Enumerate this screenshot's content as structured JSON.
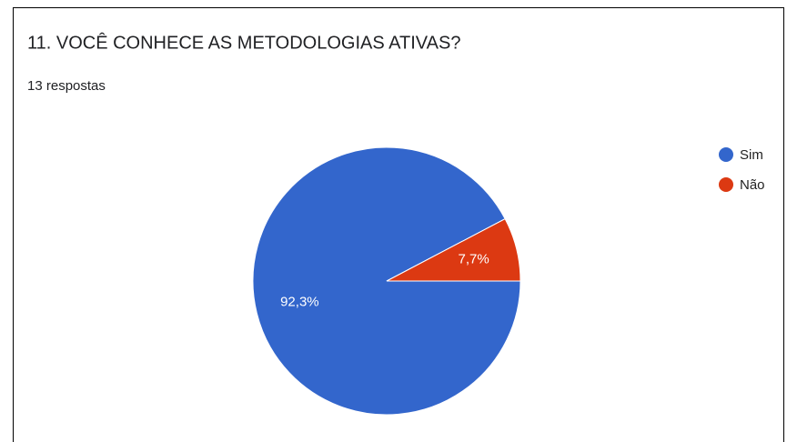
{
  "chart_data": {
    "type": "pie",
    "title": "11. VOCÊ CONHECE AS METODOLOGIAS ATIVAS?",
    "subtitle": "13 respostas",
    "categories": [
      "Sim",
      "Não"
    ],
    "values": [
      92.3,
      7.7
    ],
    "value_labels": [
      "92,3%",
      "7,7%"
    ],
    "colors": [
      "#3366cc",
      "#dc3912"
    ],
    "legend": "right"
  }
}
